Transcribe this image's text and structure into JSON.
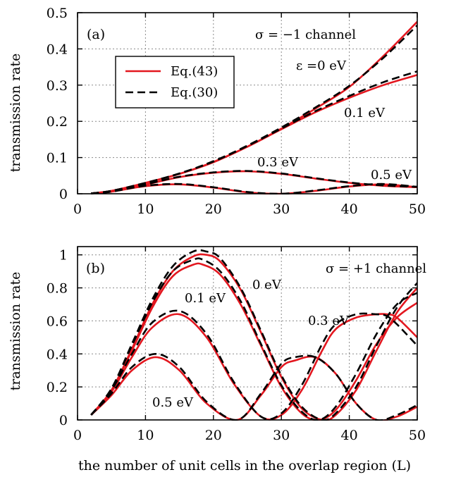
{
  "chart_data": [
    {
      "type": "line",
      "panel_label": "(a)",
      "annotation": "σ = −1 channel",
      "xlabel": "",
      "ylabel": "transmission rate",
      "xlim": [
        0,
        50
      ],
      "ylim": [
        0,
        0.5
      ],
      "xticks": [
        "0",
        "10",
        "20",
        "30",
        "40",
        "50"
      ],
      "yticks": [
        "0",
        "0.1",
        "0.2",
        "0.3",
        "0.4",
        "0.5"
      ],
      "legend": {
        "entries": [
          "Eq.(43)",
          "Eq.(30)"
        ],
        "placement": "upper-left"
      },
      "energy_labels": [
        "ε =0 eV",
        "0.1 eV",
        "0.3 eV",
        "0.5 eV"
      ],
      "series": [
        {
          "name": "ε = 0 eV, Eq.(43)",
          "model": "Eq.(43)",
          "x": [
            2,
            5,
            10,
            15,
            20,
            25,
            30,
            35,
            40,
            45,
            50
          ],
          "y": [
            0.001,
            0.008,
            0.03,
            0.055,
            0.088,
            0.13,
            0.18,
            0.235,
            0.295,
            0.38,
            0.475
          ]
        },
        {
          "name": "ε = 0 eV, Eq.(30)",
          "model": "Eq.(30)",
          "x": [
            2,
            5,
            10,
            15,
            20,
            25,
            30,
            35,
            40,
            45,
            50
          ],
          "y": [
            0.001,
            0.008,
            0.03,
            0.056,
            0.09,
            0.133,
            0.183,
            0.238,
            0.298,
            0.375,
            0.465
          ]
        },
        {
          "name": "0.1 eV, Eq.(43)",
          "model": "Eq.(43)",
          "x": [
            2,
            5,
            10,
            15,
            20,
            25,
            30,
            35,
            40,
            45,
            50
          ],
          "y": [
            0.001,
            0.008,
            0.03,
            0.055,
            0.087,
            0.13,
            0.178,
            0.225,
            0.265,
            0.3,
            0.328
          ]
        },
        {
          "name": "0.1 eV, Eq.(30)",
          "model": "Eq.(30)",
          "x": [
            2,
            5,
            10,
            15,
            20,
            25,
            30,
            35,
            40,
            45,
            50
          ],
          "y": [
            0.001,
            0.008,
            0.03,
            0.056,
            0.089,
            0.132,
            0.18,
            0.228,
            0.27,
            0.308,
            0.338
          ]
        },
        {
          "name": "0.3 eV, Eq.(43)",
          "model": "Eq.(43)",
          "x": [
            2,
            5,
            10,
            15,
            20,
            25,
            30,
            35,
            40,
            45,
            50
          ],
          "y": [
            0.001,
            0.006,
            0.025,
            0.046,
            0.058,
            0.062,
            0.055,
            0.042,
            0.03,
            0.022,
            0.018
          ]
        },
        {
          "name": "0.3 eV, Eq.(30)",
          "model": "Eq.(30)",
          "x": [
            2,
            5,
            10,
            15,
            20,
            25,
            30,
            35,
            40,
            45,
            50
          ],
          "y": [
            0.001,
            0.006,
            0.026,
            0.047,
            0.059,
            0.063,
            0.056,
            0.043,
            0.031,
            0.023,
            0.019
          ]
        },
        {
          "name": "0.5 eV, Eq.(43)",
          "model": "Eq.(43)",
          "x": [
            2,
            5,
            10,
            15,
            20,
            25,
            30,
            35,
            40,
            45,
            50
          ],
          "y": [
            0.001,
            0.006,
            0.021,
            0.026,
            0.017,
            0.004,
            0.0,
            0.008,
            0.02,
            0.026,
            0.018
          ]
        },
        {
          "name": "0.5 eV, Eq.(30)",
          "model": "Eq.(30)",
          "x": [
            2,
            5,
            10,
            15,
            20,
            25,
            30,
            35,
            40,
            45,
            50
          ],
          "y": [
            0.001,
            0.006,
            0.022,
            0.027,
            0.018,
            0.005,
            0.0,
            0.009,
            0.021,
            0.027,
            0.019
          ]
        }
      ]
    },
    {
      "type": "line",
      "panel_label": "(b)",
      "annotation": "σ = +1 channel",
      "xlabel": "the number of unit cells in the overlap region (L)",
      "ylabel": "transmission rate",
      "xlim": [
        0,
        50
      ],
      "ylim": [
        0,
        1.05
      ],
      "xticks": [
        "0",
        "10",
        "20",
        "30",
        "40",
        "50"
      ],
      "yticks": [
        "0",
        "0.2",
        "0.4",
        "0.6",
        "0.8",
        "1"
      ],
      "energy_labels": [
        "0 eV",
        "0.1 eV",
        "0.3 eV",
        "0.5 eV"
      ],
      "series": [
        {
          "name": "0 eV, Eq.(43)",
          "model": "Eq.(43)",
          "x": [
            2,
            5,
            8,
            11,
            14,
            17,
            19,
            21,
            24,
            27,
            30,
            33,
            36,
            38,
            41,
            44,
            47,
            50
          ],
          "y": [
            0.03,
            0.18,
            0.43,
            0.7,
            0.9,
            0.99,
            1.0,
            0.96,
            0.79,
            0.53,
            0.26,
            0.07,
            0.0,
            0.03,
            0.18,
            0.42,
            0.65,
            0.8
          ]
        },
        {
          "name": "0 eV, Eq.(30)",
          "model": "Eq.(30)",
          "x": [
            2,
            5,
            8,
            11,
            14,
            17,
            19,
            21,
            24,
            27,
            30,
            33,
            36,
            38,
            41,
            44,
            47,
            50
          ],
          "y": [
            0.03,
            0.19,
            0.46,
            0.73,
            0.93,
            1.02,
            1.02,
            0.98,
            0.8,
            0.54,
            0.27,
            0.08,
            0.0,
            0.04,
            0.2,
            0.45,
            0.68,
            0.83
          ]
        },
        {
          "name": "0.1 eV, Eq.(43)",
          "model": "Eq.(43)",
          "x": [
            2,
            5,
            8,
            11,
            14,
            17,
            18.5,
            21,
            24,
            27,
            30,
            33,
            35.5,
            38,
            41,
            44,
            47,
            50
          ],
          "y": [
            0.03,
            0.18,
            0.42,
            0.68,
            0.87,
            0.94,
            0.94,
            0.88,
            0.7,
            0.45,
            0.2,
            0.04,
            0.0,
            0.06,
            0.24,
            0.46,
            0.62,
            0.71
          ]
        },
        {
          "name": "0.1 eV, Eq.(30)",
          "model": "Eq.(30)",
          "x": [
            2,
            5,
            8,
            11,
            14,
            17,
            18.5,
            21,
            24,
            27,
            30,
            33,
            35.5,
            38,
            41,
            44,
            47,
            50
          ],
          "y": [
            0.03,
            0.19,
            0.45,
            0.71,
            0.9,
            0.97,
            0.97,
            0.9,
            0.72,
            0.46,
            0.21,
            0.05,
            0.0,
            0.08,
            0.28,
            0.52,
            0.7,
            0.77
          ]
        },
        {
          "name": "0.3 eV, Eq.(43)",
          "model": "Eq.(43)",
          "x": [
            2,
            5,
            8,
            11,
            15,
            19,
            23,
            27,
            30,
            33,
            36,
            38,
            41,
            44,
            45.5,
            47,
            50
          ],
          "y": [
            0.03,
            0.17,
            0.38,
            0.56,
            0.64,
            0.5,
            0.22,
            0.02,
            0.03,
            0.18,
            0.42,
            0.55,
            0.62,
            0.64,
            0.64,
            0.62,
            0.5
          ]
        },
        {
          "name": "0.3 eV, Eq.(30)",
          "model": "Eq.(30)",
          "x": [
            2,
            5,
            8,
            11,
            15,
            19,
            23,
            27,
            30,
            33,
            36,
            38,
            41,
            44,
            45.5,
            47,
            50
          ],
          "y": [
            0.03,
            0.18,
            0.4,
            0.59,
            0.66,
            0.52,
            0.23,
            0.02,
            0.04,
            0.21,
            0.46,
            0.58,
            0.64,
            0.64,
            0.63,
            0.58,
            0.45
          ]
        },
        {
          "name": "0.5 eV, Eq.(43)",
          "model": "Eq.(43)",
          "x": [
            2,
            5,
            8,
            11.5,
            15,
            19,
            23.5,
            27,
            30,
            32,
            35,
            38,
            41,
            44,
            47,
            50
          ],
          "y": [
            0.03,
            0.15,
            0.3,
            0.38,
            0.3,
            0.1,
            0.0,
            0.15,
            0.32,
            0.36,
            0.38,
            0.28,
            0.1,
            0.0,
            0.02,
            0.08
          ]
        },
        {
          "name": "0.5 eV, Eq.(30)",
          "model": "Eq.(30)",
          "x": [
            2,
            5,
            8,
            11.5,
            15,
            19,
            23.5,
            27,
            30,
            32,
            35,
            38,
            41,
            44,
            47,
            50
          ],
          "y": [
            0.03,
            0.16,
            0.32,
            0.4,
            0.32,
            0.11,
            0.0,
            0.16,
            0.34,
            0.38,
            0.38,
            0.28,
            0.1,
            0.0,
            0.03,
            0.09
          ]
        }
      ]
    }
  ]
}
